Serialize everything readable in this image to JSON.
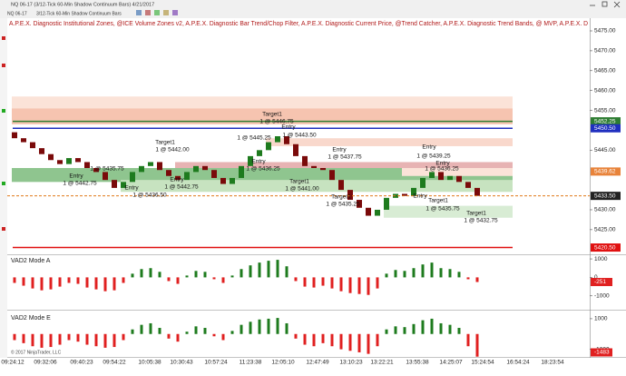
{
  "window": {
    "title": "NQ 06-17 (3/12-Tick 60-Min Shadow Continuum Bars) 4/21/2017",
    "instrument": "NQ 06-17",
    "bar_type": "3/12-Tick 60-Min Shadow Continuum Bars",
    "copyright": "© 2017 NinjaTrader, LLC"
  },
  "time_labels": [
    "09:24:12",
    "09:32:06",
    "09:40:23",
    "09:54:22",
    "10:05:38",
    "10:30:43",
    "10:57:24",
    "11:23:38",
    "12:05:10",
    "12:47:49",
    "13:10:23",
    "13:22:21",
    "13:55:38",
    "14:25:07",
    "15:24:54",
    "16:54:24",
    "18:23:54"
  ],
  "chart_data": [
    {
      "type": "candlestick",
      "title": "A.P.E.X. Diagnostic Institutional Zones, @ICE Volume Zones v2, A.P.E.X. Diagnostic Bar Trend/Chop Filter, A.P.E.X. Diagnostic Current Price, @Trend Catcher, A.P.E.X. Diagnostic Trend Bands, @ MVP, A.P.E.X. D",
      "ylim": [
        5418.8,
        5478.2
      ],
      "yticks": [
        {
          "value": 5475,
          "label": "5475.00"
        },
        {
          "value": 5470,
          "label": "5470.00"
        },
        {
          "value": 5465,
          "label": "5465.00"
        },
        {
          "value": 5460,
          "label": "5460.00"
        },
        {
          "value": 5455,
          "label": "5455.00"
        },
        {
          "value": 5445,
          "label": "5445.00"
        },
        {
          "value": 5430,
          "label": "5430.00"
        },
        {
          "value": 5425,
          "label": "5425.00"
        }
      ],
      "up_color": "#1e7b1e",
      "down_color": "#7a0a0a",
      "open": [
        5449.5,
        5448,
        5447,
        5445.5,
        5444,
        5442.5,
        5441.5,
        5443,
        5442,
        5440.5,
        5439.5,
        5437.5,
        5435.5,
        5437,
        5439.5,
        5441,
        5442,
        5440,
        5438.5,
        5437.5,
        5439.5,
        5441,
        5440,
        5438,
        5436.5,
        5438,
        5441,
        5443.5,
        5445,
        5447,
        5448.5,
        5446.5,
        5443.5,
        5441,
        5440.5,
        5440,
        5437.5,
        5435,
        5432.5,
        5430.5,
        5428.5,
        5430,
        5433,
        5434,
        5433.5,
        5435.5,
        5438,
        5439.5,
        5437.5,
        5438.5,
        5437,
        5435.5
      ],
      "close": [
        5448,
        5447,
        5445.5,
        5444,
        5442.5,
        5441.5,
        5443,
        5442,
        5440.5,
        5439.5,
        5437.5,
        5435.5,
        5437,
        5439.5,
        5441,
        5442,
        5440,
        5438.5,
        5437.5,
        5439.5,
        5441,
        5440,
        5438,
        5436.5,
        5438,
        5441,
        5443.5,
        5445,
        5447,
        5448.5,
        5446.5,
        5443.5,
        5441,
        5440.5,
        5440,
        5437.5,
        5435,
        5432.5,
        5430.5,
        5428.5,
        5430,
        5433,
        5434,
        5433.5,
        5435.5,
        5438,
        5439.5,
        5437.5,
        5438.5,
        5437,
        5435.5,
        5433.5
      ],
      "zones": [
        {
          "from": 5458.5,
          "to": 5455.5,
          "start": 0,
          "color": "#fbe3d8"
        },
        {
          "from": 5455.5,
          "to": 5451.5,
          "start": 0,
          "color": "#f6c4b0"
        },
        {
          "from": 5448,
          "to": 5446,
          "start": 28,
          "color": "#f9d8cc"
        },
        {
          "from": 5442,
          "to": 5439,
          "start": 18,
          "color": "#e7b3b3"
        },
        {
          "from": 5440.5,
          "to": 5437,
          "start": 0,
          "color": "#8fc58f"
        },
        {
          "from": 5437.5,
          "to": 5434.5,
          "start": 12,
          "color": "#c7e3c0"
        },
        {
          "from": 5440.5,
          "to": 5438.5,
          "start": 43,
          "color": "#fbe3d8"
        },
        {
          "from": 5431,
          "to": 5428,
          "start": 41,
          "color": "#d8ecd4"
        }
      ],
      "levels": [
        {
          "value": 5452.25,
          "label": "5452.25",
          "color": "#2e7d32",
          "line_style": "solid"
        },
        {
          "value": 5450.5,
          "label": "5450.50",
          "color": "#1f2fbf",
          "line_style": "solid"
        },
        {
          "value": 5439.62,
          "label": "5439.62",
          "color": "#e8833a",
          "line_style": "none"
        },
        {
          "value": 5433.5,
          "label": "5433.50",
          "color": "#222222",
          "line_style": "dashed"
        },
        {
          "value": 5420.5,
          "label": "5420.50",
          "color": "#e01010",
          "line_style": "solid"
        }
      ],
      "annotations": [
        "Target1",
        "1 @ 5446.75",
        "Entry",
        "1 @ 5443.50",
        "1 @ 5445.25",
        "Target1",
        "1 @ 5442.00",
        "Entry",
        "1 @ 5442.75",
        "1 @ 5435.75",
        "Entry",
        "1 @ 5436.50",
        "Entry",
        "1 @ 5442.75",
        "Entry",
        "1 @ 5436.25",
        "Target1",
        "1 @ 5441.00",
        "Entry",
        "1 @ 5437.75",
        "Target1",
        "1 @ 5435.25",
        "Entry",
        "1 @ 5439.25",
        "Entry",
        "1 @ 5436.25",
        "Entry",
        "Target1",
        "1 @ 5435.75",
        "Target1",
        "1 @ 5432.75"
      ]
    },
    {
      "type": "histogram",
      "title": "VAD2 Mode A",
      "ylim": [
        -1750,
        1200
      ],
      "yticks": [
        1000,
        0,
        -1000
      ],
      "up_color": "#1e7b1e",
      "down_color": "#e02020",
      "values": [
        -300,
        -450,
        -600,
        -700,
        -650,
        -500,
        -300,
        -350,
        -550,
        -650,
        -750,
        -700,
        -300,
        200,
        450,
        500,
        300,
        -200,
        -350,
        100,
        350,
        300,
        -100,
        -300,
        100,
        450,
        650,
        800,
        900,
        950,
        600,
        -200,
        -500,
        -550,
        -450,
        -600,
        -750,
        -850,
        -900,
        -950,
        -600,
        200,
        400,
        350,
        500,
        700,
        800,
        500,
        450,
        300,
        -100,
        -251
      ]
    },
    {
      "type": "histogram",
      "title": "VAD2 Mode E",
      "ylim": [
        -1500,
        1530
      ],
      "yticks": [
        1000,
        -1000
      ],
      "up_color": "#1e7b1e",
      "down_color": "#e02020",
      "values": [
        -400,
        -600,
        -800,
        -900,
        -850,
        -700,
        -400,
        -500,
        -700,
        -800,
        -900,
        -850,
        -400,
        300,
        600,
        700,
        400,
        -300,
        -500,
        150,
        500,
        400,
        -150,
        -400,
        200,
        600,
        800,
        950,
        1000,
        1050,
        700,
        -300,
        -700,
        -800,
        -600,
        -800,
        -1000,
        -1100,
        -1200,
        -1300,
        -800,
        300,
        500,
        450,
        650,
        900,
        1000,
        700,
        600,
        400,
        -800,
        -1483
      ]
    }
  ]
}
